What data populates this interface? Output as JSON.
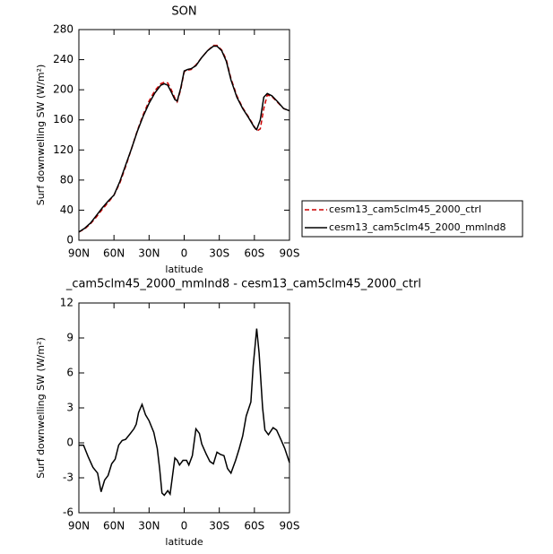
{
  "chart_data": [
    {
      "type": "line",
      "title": "SON",
      "x_label": "latitude",
      "y_label": "Surf downwelling SW (W/m²)",
      "x": [
        90,
        85,
        80,
        75,
        70,
        65,
        60,
        55,
        50,
        45,
        40,
        35,
        30,
        25,
        20,
        17,
        14,
        11,
        8,
        6,
        3,
        0,
        -3,
        -6,
        -10,
        -15,
        -20,
        -25,
        -28,
        -32,
        -36,
        -40,
        -45,
        -50,
        -55,
        -60,
        -62,
        -65,
        -68,
        -71,
        -75,
        -80,
        -85,
        -90
      ],
      "series": [
        {
          "name": "cesm13_cam5clm45_2000_ctrl",
          "color": "#cc0000",
          "line_style": "dashed",
          "values": [
            11,
            15,
            22,
            31,
            41,
            50,
            60,
            76,
            98,
            122,
            146,
            167,
            185,
            199,
            208,
            210,
            209,
            200,
            189,
            184,
            200,
            224,
            226,
            227,
            233,
            243,
            252,
            259,
            259,
            253,
            240,
            215,
            192,
            176,
            164,
            151,
            145,
            148,
            175,
            193,
            191,
            183,
            175,
            172
          ]
        },
        {
          "name": "cesm13_cam5clm45_2000_mmlnd8",
          "color": "#000000",
          "line_style": "solid",
          "values": [
            11,
            16,
            23,
            33,
            43,
            52,
            60,
            78,
            100,
            122,
            145,
            165,
            182,
            196,
            206,
            208,
            206,
            197,
            187,
            185,
            202,
            225,
            227,
            228,
            232,
            243,
            252,
            258,
            258,
            252,
            238,
            213,
            190,
            175,
            163,
            150,
            147,
            160,
            190,
            195,
            192,
            184,
            175,
            172
          ]
        }
      ],
      "xlim": [
        90,
        -90
      ],
      "xticks": [
        {
          "value": 90,
          "label": "90N"
        },
        {
          "value": 60,
          "label": "60N"
        },
        {
          "value": 30,
          "label": "30N"
        },
        0,
        {
          "value": -30,
          "label": "30S"
        },
        {
          "value": -60,
          "label": "60S"
        },
        {
          "value": -90,
          "label": "90S"
        }
      ],
      "ylim": [
        0,
        280
      ],
      "yticks": [
        0,
        40,
        80,
        120,
        160,
        200,
        240,
        280
      ],
      "legend": "right"
    },
    {
      "type": "line",
      "title": "_cam5clm45_2000_mmlnd8 - cesm13_cam5clm45_2000_ctrl",
      "x_label": "latitude",
      "y_label": "Surf downwelling SW (W/m²)",
      "x": [
        90,
        86,
        82,
        78,
        74,
        71,
        68,
        65,
        62,
        59,
        56,
        53,
        50,
        46,
        43,
        41,
        39,
        36,
        33,
        30,
        26,
        23,
        21,
        19,
        17,
        14,
        12,
        8,
        6,
        4,
        1,
        -2,
        -4,
        -7,
        -10,
        -13,
        -15,
        -19,
        -22,
        -25,
        -28,
        -31,
        -34,
        -37,
        -40,
        -44,
        -47,
        -50,
        -53,
        -57,
        -59,
        -62,
        -64,
        -67,
        -69,
        -72,
        -76,
        -79,
        -83,
        -86,
        -90
      ],
      "series": [
        {
          "color": "#000000",
          "line_style": "solid",
          "values": [
            -0.2,
            -0.2,
            -1.2,
            -2.1,
            -2.6,
            -4.2,
            -3.2,
            -2.8,
            -1.8,
            -1.4,
            -0.2,
            0.2,
            0.3,
            0.8,
            1.2,
            1.6,
            2.6,
            3.3,
            2.4,
            1.9,
            0.9,
            -0.5,
            -2.2,
            -4.3,
            -4.5,
            -4.1,
            -4.4,
            -1.3,
            -1.5,
            -1.9,
            -1.5,
            -1.5,
            -1.9,
            -1.1,
            1.2,
            0.8,
            -0.1,
            -1,
            -1.6,
            -1.8,
            -0.8,
            -1,
            -1.1,
            -2.2,
            -2.6,
            -1.5,
            -0.5,
            0.6,
            2.3,
            3.5,
            6.6,
            9.8,
            7.7,
            3,
            1.1,
            0.7,
            1.3,
            1.1,
            0.2,
            -0.5,
            -1.7
          ]
        }
      ],
      "xlim": [
        90,
        -90
      ],
      "xticks": [
        {
          "value": 90,
          "label": "90N"
        },
        {
          "value": 60,
          "label": "60N"
        },
        {
          "value": 30,
          "label": "30N"
        },
        0,
        {
          "value": -30,
          "label": "30S"
        },
        {
          "value": -60,
          "label": "60S"
        },
        {
          "value": -90,
          "label": "90S"
        }
      ],
      "ylim": [
        -6,
        12
      ],
      "yticks": [
        -6,
        -3,
        0,
        3,
        6,
        9,
        12
      ]
    }
  ]
}
